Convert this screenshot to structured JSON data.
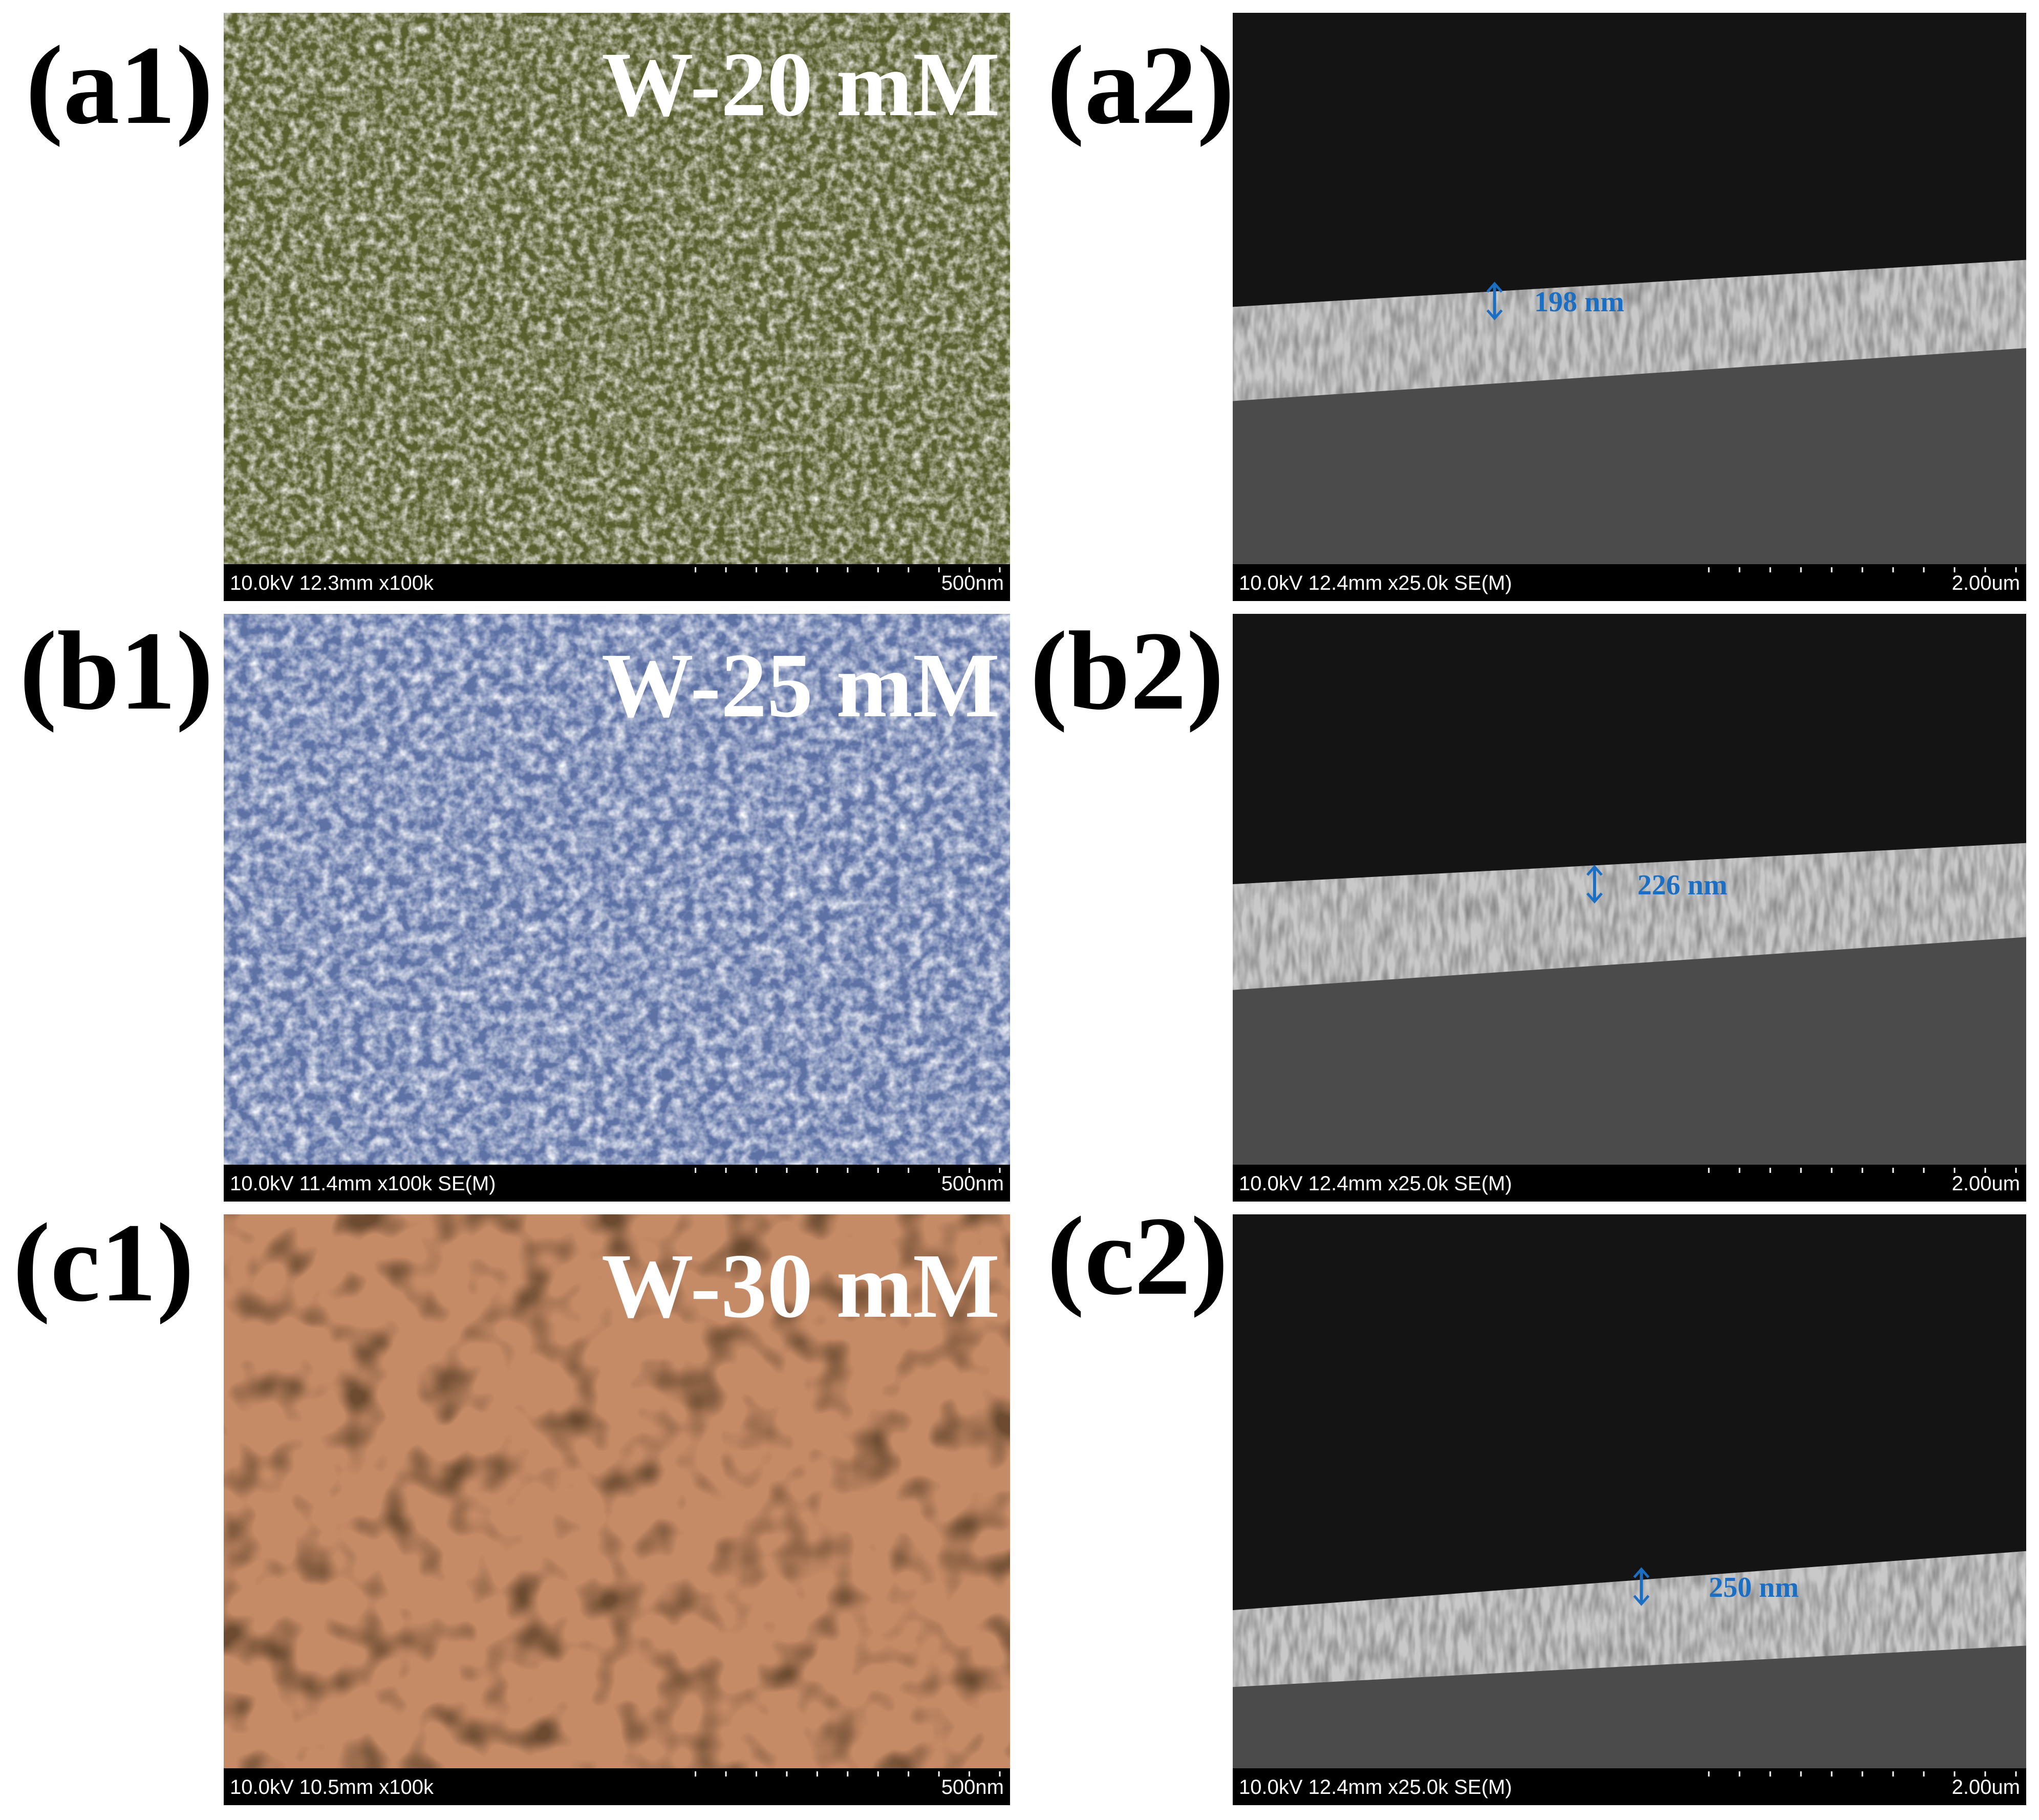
{
  "panels": [
    {
      "label": "(a1)",
      "overlay": "W-20 mM",
      "info": "10.0kV 12.3mm x100k",
      "scale": "500nm"
    },
    {
      "label": "(a2)",
      "info": "10.0kV 12.4mm x25.0k SE(M)",
      "scale": "2.00um",
      "measurement": "198 nm"
    },
    {
      "label": "(b1)",
      "overlay": "W-25 mM",
      "info": "10.0kV 11.4mm x100k SE(M)",
      "scale": "500nm"
    },
    {
      "label": "(b2)",
      "info": "10.0kV 12.4mm x25.0k SE(M)",
      "scale": "2.00um",
      "measurement": "226 nm"
    },
    {
      "label": "(c1)",
      "overlay": "W-30 mM",
      "info": "10.0kV 10.5mm x100k",
      "scale": "500nm"
    },
    {
      "label": "(c2)",
      "info": "10.0kV 12.4mm x25.0k SE(M)",
      "scale": "2.00um",
      "measurement": "250 nm"
    }
  ]
}
